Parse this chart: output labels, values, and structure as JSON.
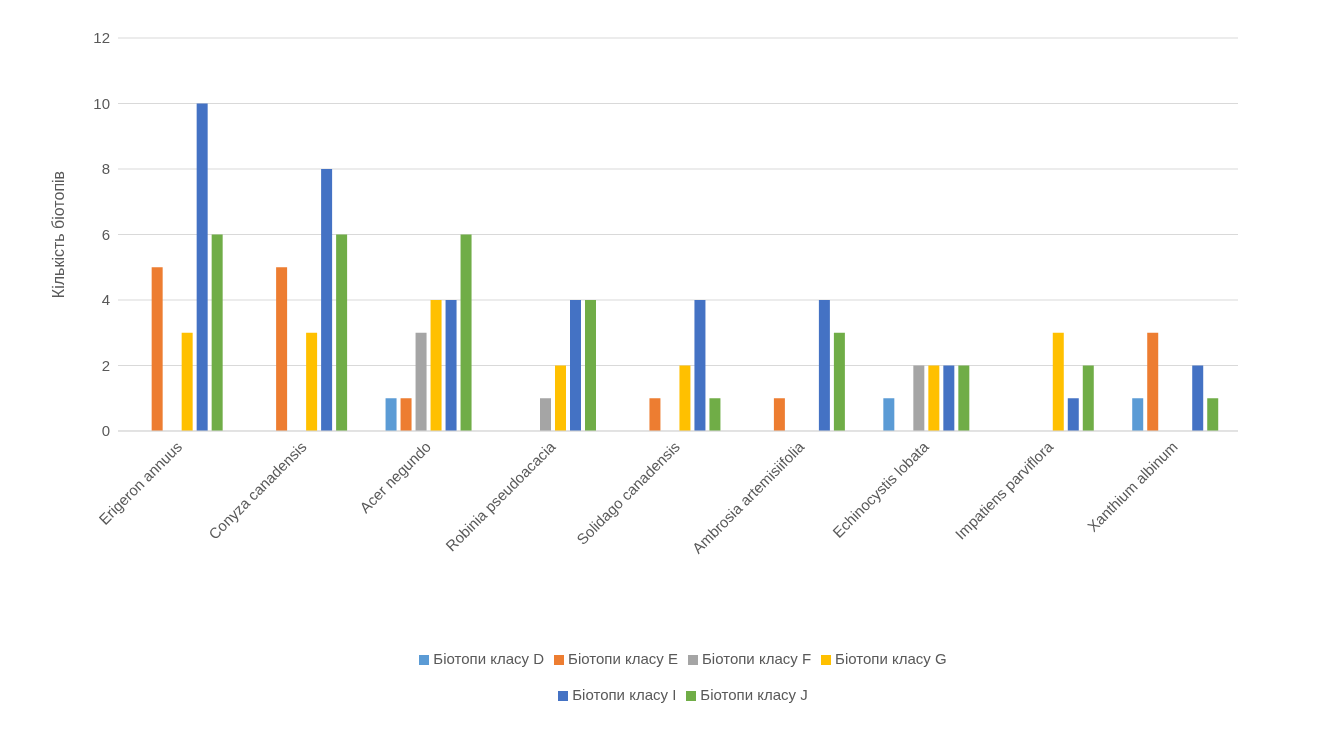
{
  "chart_data": {
    "type": "bar",
    "ylabel": "Кількість біотопів",
    "categories": [
      "Erigeron annuus",
      "Conyza canadensis",
      "Acer negundo",
      "Robinia pseudoacacia",
      "Solidago canadensis",
      "Ambrosia artemisiifolia",
      "Echinocystis lobata",
      "Impatiens parviflora",
      "Xanthium albinum"
    ],
    "series": [
      {
        "name": "Біотопи класу D",
        "color": "#5b9bd5",
        "values": [
          0,
          0,
          1,
          0,
          0,
          0,
          1,
          0,
          1
        ]
      },
      {
        "name": "Біотопи класу E",
        "color": "#ed7d31",
        "values": [
          5,
          5,
          1,
          0,
          1,
          1,
          0,
          0,
          3
        ]
      },
      {
        "name": "Біотопи класу F",
        "color": "#a5a5a5",
        "values": [
          0,
          0,
          3,
          1,
          0,
          0,
          2,
          0,
          0
        ]
      },
      {
        "name": "Біотопи класу G",
        "color": "#ffc000",
        "values": [
          3,
          3,
          4,
          2,
          2,
          0,
          2,
          3,
          0
        ]
      },
      {
        "name": "Біотопи класу I",
        "color": "#4472c4",
        "values": [
          10,
          8,
          4,
          4,
          4,
          4,
          2,
          1,
          2
        ]
      },
      {
        "name": "Біотопи класу J",
        "color": "#70ad47",
        "values": [
          6,
          6,
          6,
          4,
          1,
          3,
          2,
          2,
          1
        ]
      }
    ],
    "ylim": [
      0,
      12
    ],
    "yticks": [
      0,
      2,
      4,
      6,
      8,
      10,
      12
    ],
    "grid": "y",
    "legend": "bottom"
  }
}
